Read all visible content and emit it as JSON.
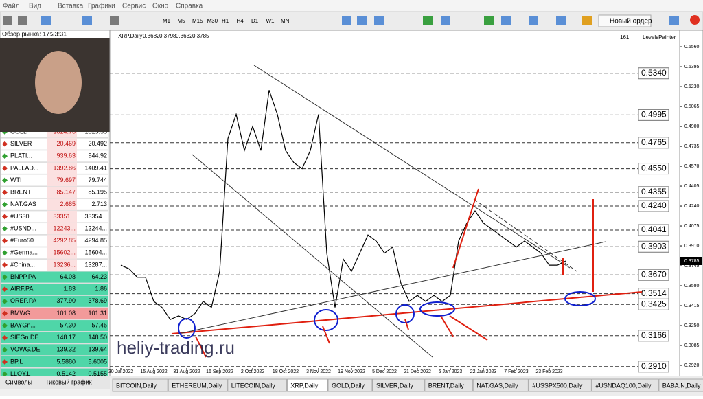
{
  "menu": [
    "Файл",
    "Вид",
    "Вставка",
    "Графики",
    "Сервис",
    "Окно",
    "Справка"
  ],
  "toolbar": {
    "timeframes": [
      "M1",
      "M5",
      "M15",
      "M30",
      "H1",
      "H4",
      "D1",
      "W1",
      "MN"
    ],
    "new_order": "Новый ордер"
  },
  "market_watch": {
    "title": "Обзор рынка: 17:23:31",
    "rows": [
      {
        "symbol": "GOLD",
        "bid": "1824.76",
        "ask": "1825.35",
        "color": "#ffffff"
      },
      {
        "symbol": "SILVER",
        "bid": "20.469",
        "ask": "20.492",
        "color": "#ffffff"
      },
      {
        "symbol": "PLATI...",
        "bid": "939.63",
        "ask": "944.92",
        "color": "#ffffff"
      },
      {
        "symbol": "PALLAD...",
        "bid": "1392.86",
        "ask": "1409.41",
        "color": "#ffffff"
      },
      {
        "symbol": "WTI",
        "bid": "79.697",
        "ask": "79.744",
        "color": "#ffffff"
      },
      {
        "symbol": "BRENT",
        "bid": "85.147",
        "ask": "85.195",
        "color": "#ffffff"
      },
      {
        "symbol": "NAT.GAS",
        "bid": "2.685",
        "ask": "2.713",
        "color": "#ffffff"
      },
      {
        "symbol": "#US30",
        "bid": "33351...",
        "ask": "33354...",
        "color": "#ffffff"
      },
      {
        "symbol": "#USND...",
        "bid": "12243...",
        "ask": "12244...",
        "color": "#ffffff"
      },
      {
        "symbol": "#Euro50",
        "bid": "4292.85",
        "ask": "4294.85",
        "color": "#ffffff"
      },
      {
        "symbol": "#Germa...",
        "bid": "15602...",
        "ask": "15604...",
        "color": "#ffffff"
      },
      {
        "symbol": "#China...",
        "bid": "13236...",
        "ask": "13287...",
        "color": "#ffffff"
      },
      {
        "symbol": "BNPP.PA",
        "bid": "64.08",
        "ask": "64.23",
        "color": "#4fd6a8"
      },
      {
        "symbol": "AIRF.PA",
        "bid": "1.83",
        "ask": "1.86",
        "color": "#4fd6a8"
      },
      {
        "symbol": "OREP.PA",
        "bid": "377.90",
        "ask": "378.69",
        "color": "#4fd6a8"
      },
      {
        "symbol": "BMWG...",
        "bid": "101.08",
        "ask": "101.31",
        "color": "#f29a9a"
      },
      {
        "symbol": "BAYGn...",
        "bid": "57.30",
        "ask": "57.45",
        "color": "#4fd6a8"
      },
      {
        "symbol": "SIEGn.DE",
        "bid": "148.17",
        "ask": "148.50",
        "color": "#4fd6a8"
      },
      {
        "symbol": "VOWG.DE",
        "bid": "139.32",
        "ask": "139.64",
        "color": "#4fd6a8"
      },
      {
        "symbol": "BP.L",
        "bid": "5.5880",
        "ask": "5.6005",
        "color": "#4fd6a8"
      },
      {
        "symbol": "LLOY.L",
        "bid": "0.5142",
        "ask": "0.5155",
        "color": "#4fd6a8"
      }
    ],
    "tabs": [
      "Символы",
      "Тиковый график"
    ]
  },
  "chart_data": {
    "type": "line",
    "title": "XRP,Daily",
    "header_values": [
      0.3682,
      0.3798,
      0.3632,
      0.3785
    ],
    "categories": [
      "30 Jul 2022",
      null,
      null,
      null,
      "15 Aug 2022",
      null,
      null,
      null,
      "31 Aug 2022",
      null,
      null,
      null,
      "16 Sep 2022",
      null,
      null,
      null,
      "2 Oct 2022",
      null,
      null,
      null,
      "18 Oct 2022",
      null,
      null,
      null,
      "3 Nov 2022",
      null,
      null,
      null,
      "19 Nov 2022",
      null,
      null,
      null,
      "5 Dec 2022",
      null,
      null,
      null,
      "21 Dec 2022",
      null,
      null,
      null,
      "6 Jan 2023",
      null,
      null,
      null,
      "22 Jan 2023",
      null,
      null,
      null,
      "7 Feb 2023",
      null,
      null,
      null,
      "23 Feb 2023",
      null,
      null
    ],
    "series": [
      {
        "name": "XRP",
        "color": "#000000",
        "values": [
          0.375,
          0.372,
          0.365,
          0.365,
          0.345,
          0.34,
          0.33,
          0.333,
          0.33,
          0.335,
          0.345,
          0.34,
          0.37,
          0.48,
          0.5,
          0.47,
          0.49,
          0.47,
          0.52,
          0.5,
          0.47,
          0.46,
          0.455,
          0.47,
          0.5,
          0.385,
          0.34,
          0.38,
          0.37,
          0.385,
          0.4,
          0.395,
          0.385,
          0.39,
          0.36,
          0.345,
          0.35,
          0.345,
          0.35,
          0.345,
          0.35,
          0.395,
          0.41,
          0.42,
          0.41,
          0.405,
          0.4,
          0.395,
          0.39,
          0.395,
          0.39,
          0.385,
          0.375,
          0.375,
          0.3785
        ]
      }
    ],
    "ylim": [
      0.2829,
      0.5697
    ],
    "yticks": [
      {
        "value": 0.556,
        "label": "0.5560"
      },
      0.5395,
      {
        "value": 0.523,
        "label": "0.5230"
      },
      0.5065,
      {
        "value": 0.49,
        "label": "0.4900"
      },
      0.4735,
      {
        "value": 0.457,
        "label": "0.4570"
      },
      0.4405,
      {
        "value": 0.424,
        "label": "0.4240"
      },
      0.4075,
      {
        "value": 0.391,
        "label": "0.3910"
      },
      0.3745,
      {
        "value": 0.358,
        "label": "0.3580"
      },
      0.3415,
      {
        "value": 0.325,
        "label": "0.3250"
      },
      0.3085,
      {
        "value": 0.292,
        "label": "0.2920"
      }
    ],
    "levels": [
      {
        "value": 0.534,
        "label": "0.5340"
      },
      0.4995,
      0.4765,
      {
        "value": 0.455,
        "label": "0.4550"
      },
      0.4355,
      {
        "value": 0.424,
        "label": "0.4240"
      },
      0.4041,
      0.3903,
      {
        "value": 0.367,
        "label": "0.3670"
      },
      0.3514,
      0.3425,
      0.3166,
      {
        "value": 0.291,
        "label": "0.2910"
      }
    ],
    "current_price": 0.3785
  },
  "indicator": {
    "number": "161",
    "name": "LevelsPainter"
  },
  "watermark": "heliy-trading.ru",
  "chart_tabs": [
    "BITCOIN,Daily",
    "ETHEREUM,Daily",
    "LITECOIN,Daily",
    "XRP,Daily",
    "GOLD,Daily",
    "SILVER,Daily",
    "BRENT,Daily",
    "NAT.GAS,Daily",
    "#USSPX500,Daily",
    "#USNDAQ100,Daily",
    "BABA.N,Daily"
  ]
}
